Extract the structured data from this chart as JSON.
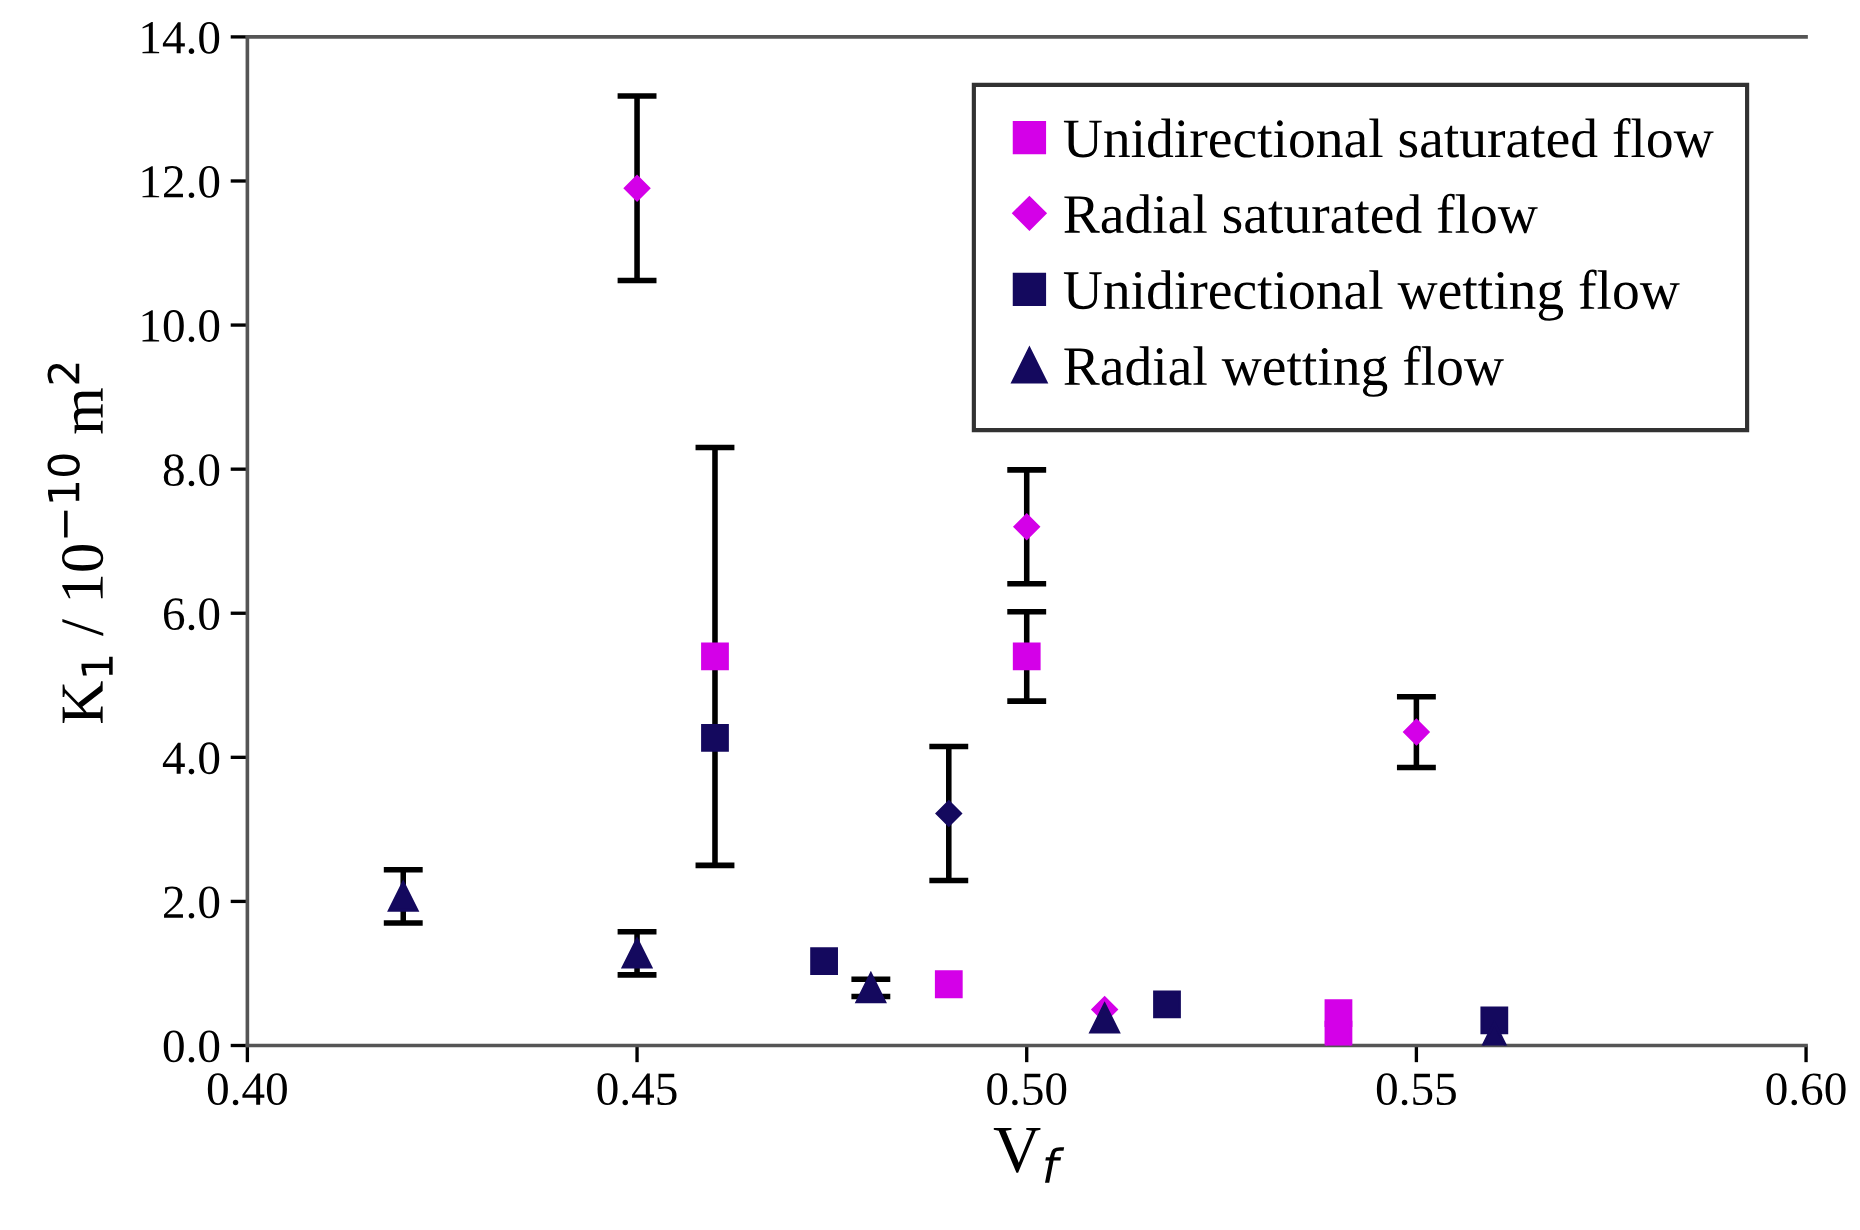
{
  "chart_data": {
    "type": "scatter",
    "xlabel": "V$_{f}$",
    "ylabel": "K$_{1}$ / 10$^{−10}$ m$^{2}$",
    "xlim": [
      0.4,
      0.6
    ],
    "xticks": [
      {
        "value": 0.4,
        "label": "0.40"
      },
      {
        "value": 0.45,
        "label": "0.45"
      },
      {
        "value": 0.5,
        "label": "0.50"
      },
      {
        "value": 0.55,
        "label": "0.55"
      },
      {
        "value": 0.6,
        "label": "0.60"
      }
    ],
    "ylim": [
      0,
      14
    ],
    "yticks": [
      {
        "value": 0,
        "label": "0.0"
      },
      {
        "value": 2,
        "label": "2.0"
      },
      {
        "value": 4,
        "label": "4.0"
      },
      {
        "value": 6,
        "label": "6.0"
      },
      {
        "value": 8,
        "label": "8.0"
      },
      {
        "value": 10,
        "label": "10.0"
      },
      {
        "value": 12,
        "label": "12.0"
      },
      {
        "value": 14,
        "label": "14.0"
      }
    ],
    "grid": false,
    "legend": "top right",
    "series": [
      {
        "name": "Unidirectional saturated flow",
        "color": "#d400e8",
        "marker": "square",
        "x": [
          0.46,
          0.49,
          0.5,
          0.54,
          0.54
        ],
        "values": [
          5.4,
          0.85,
          5.4,
          0.45,
          0.15
        ],
        "errors": [
          2.9,
          null,
          0.62,
          null,
          null
        ]
      },
      {
        "name": "Radial saturated flow",
        "color": "#d400e8",
        "marker": "diamond",
        "x": [
          0.45,
          0.5,
          0.55,
          0.51
        ],
        "values": [
          11.9,
          7.2,
          4.35,
          0.5
        ],
        "errors": [
          1.28,
          0.79,
          0.49,
          null
        ]
      },
      {
        "name": "Unidirectional wetting flow",
        "color": "#14095e",
        "marker": "square",
        "x": [
          0.46,
          0.474,
          0.518,
          0.56
        ],
        "values": [
          4.27,
          1.17,
          0.57,
          0.35
        ],
        "errors": [
          null,
          null,
          null,
          null
        ]
      },
      {
        "name": "Radial wetting flow",
        "color": "#14095e",
        "marker": "triangle",
        "x": [
          0.42,
          0.45,
          0.48,
          0.51,
          0.56
        ],
        "values": [
          2.07,
          1.28,
          0.8,
          0.38,
          0.12
        ],
        "errors": [
          0.37,
          0.3,
          0.12,
          null,
          null
        ]
      },
      {
        "color": "#14095e",
        "marker": "diamond",
        "x": [
          0.49
        ],
        "values": [
          3.22
        ],
        "errors": [
          0.93
        ]
      }
    ]
  }
}
